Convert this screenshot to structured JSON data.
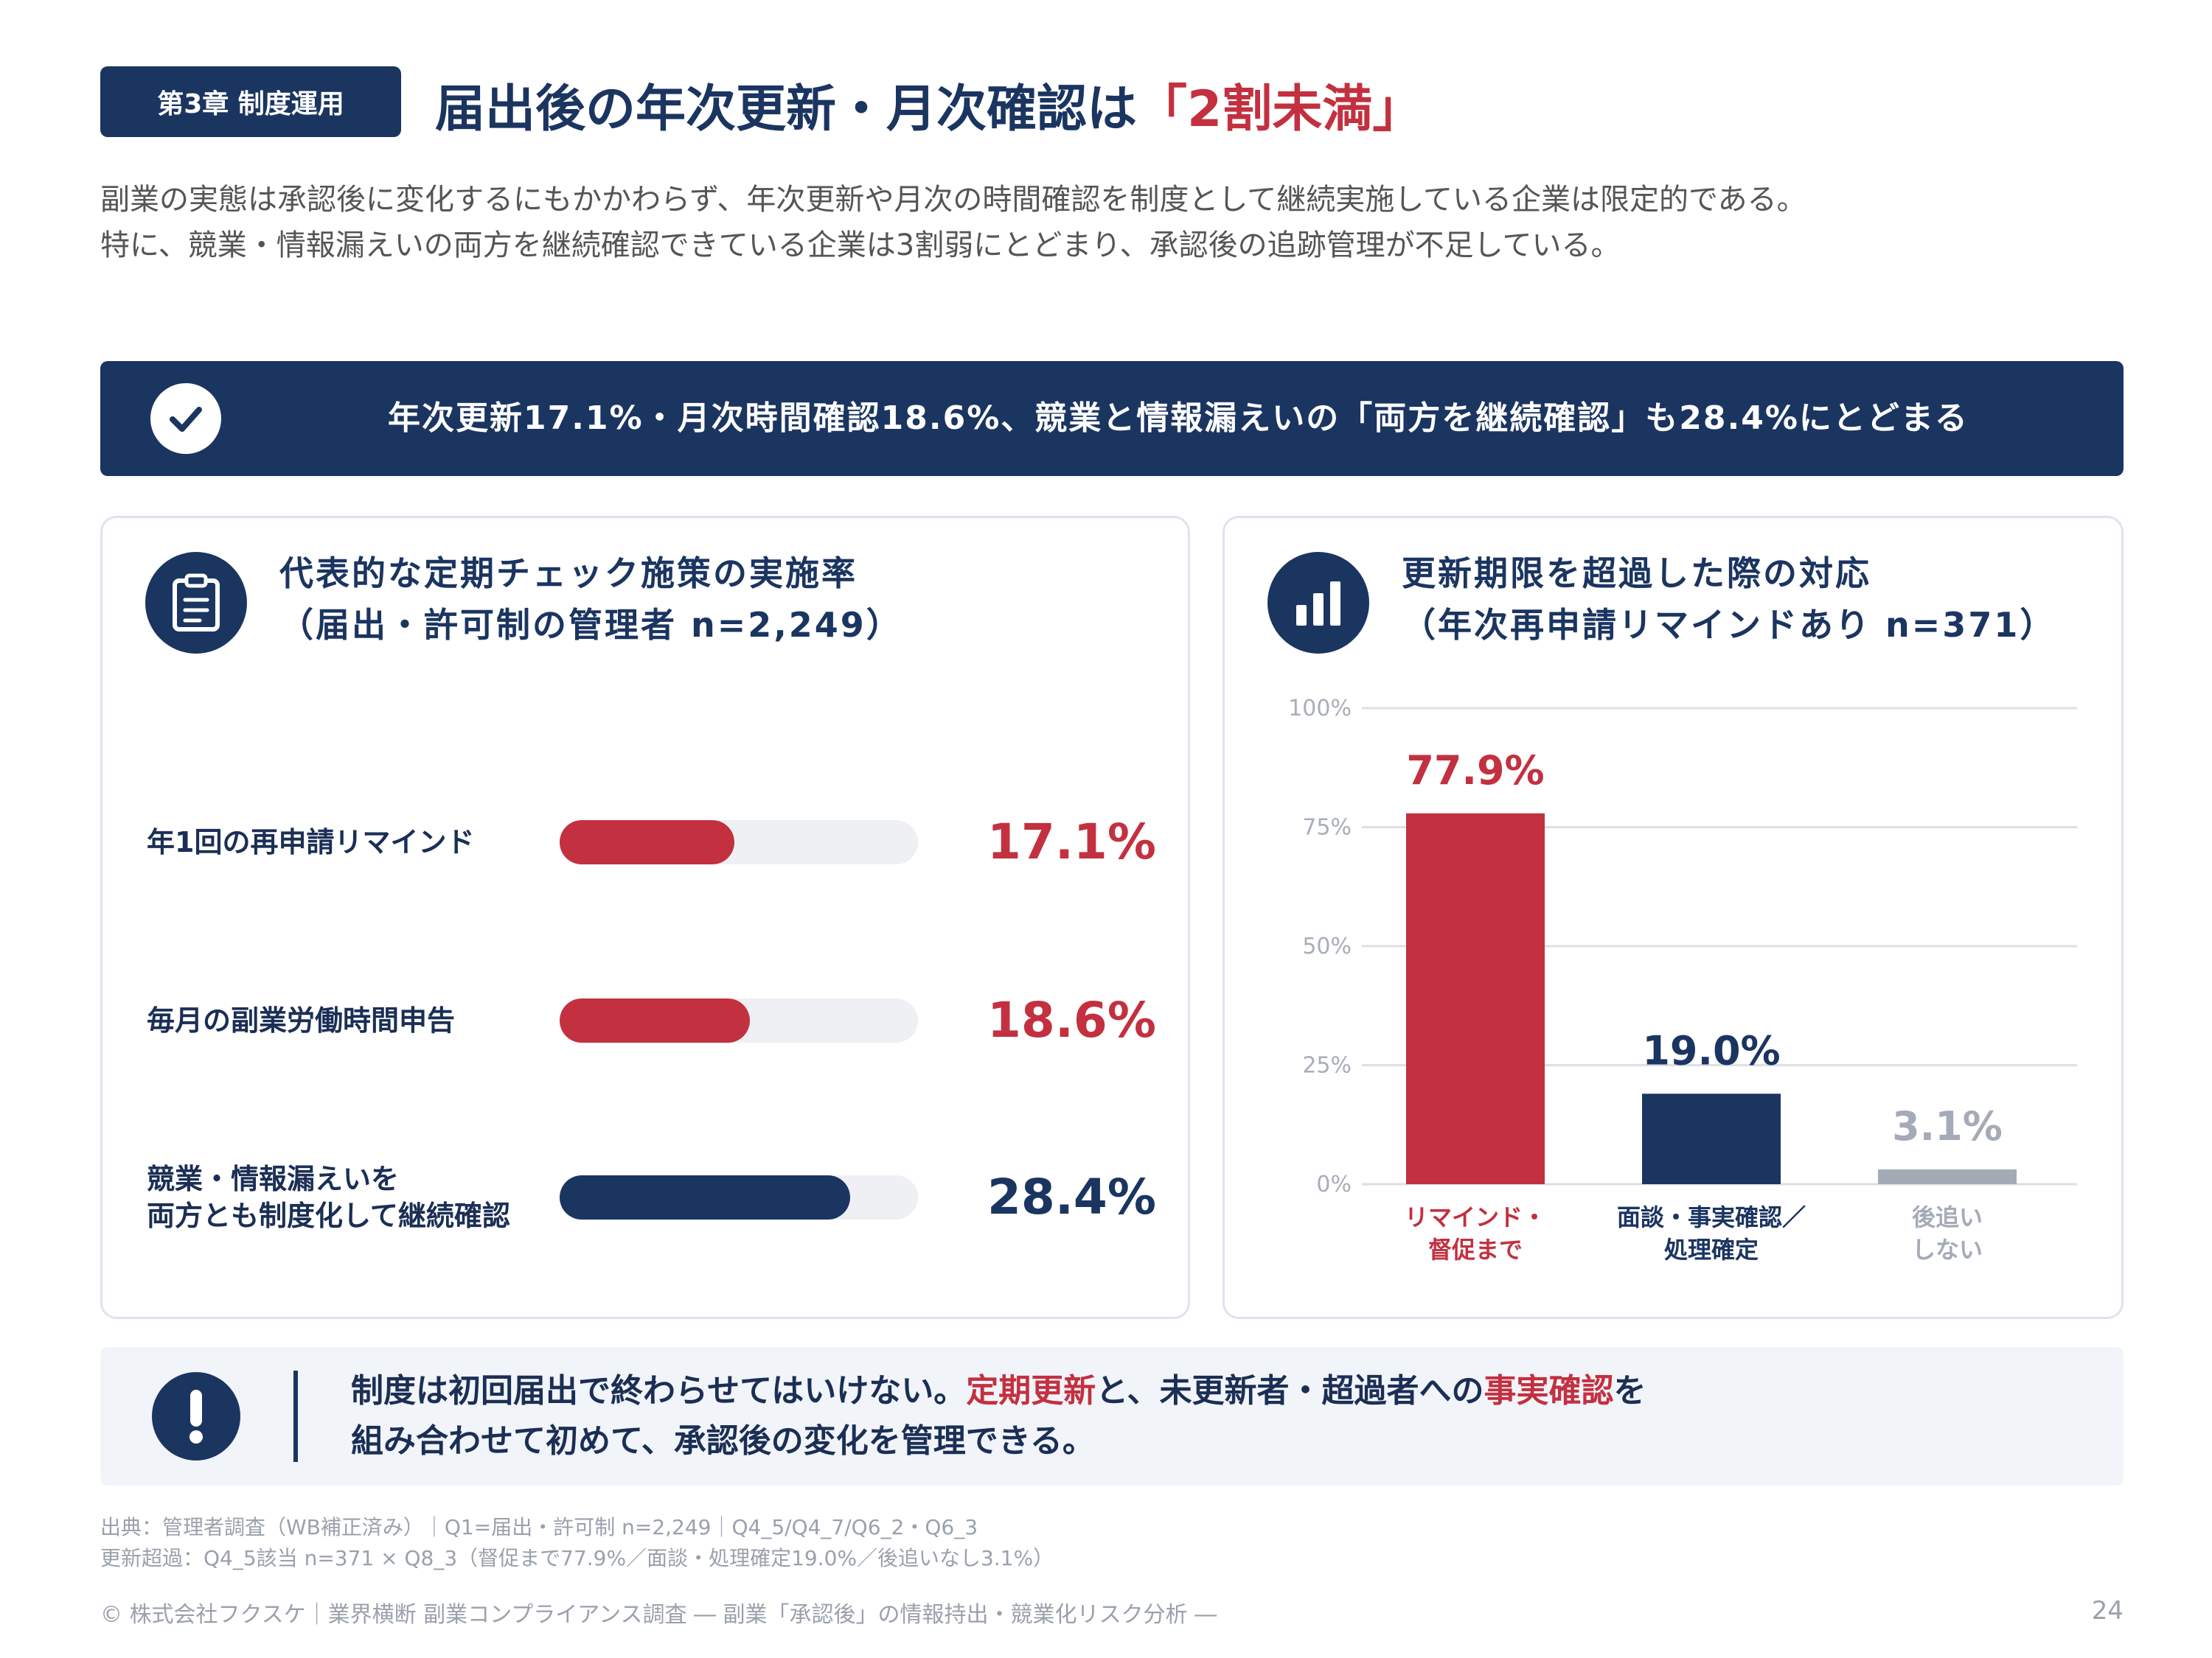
{
  "header": {
    "chapter": "第3章 制度運用",
    "title_main": "届出後の年次更新・月次確認は",
    "title_accent": "「2割未満」"
  },
  "intro": {
    "line1": "副業の実態は承認後に変化するにもかかわらず、年次更新や月次の時間確認を制度として継続実施している企業は限定的である。",
    "line2": "特に、競業・情報漏えいの両方を継続確認できている企業は3割弱にとどまり、承認後の追跡管理が不足している。"
  },
  "banner": {
    "icon": "check-icon",
    "text": "年次更新17.1%・月次時間確認18.6%、競業と情報漏えいの「両方を継続確認」も28.4%にとどまる"
  },
  "left_card": {
    "icon": "clipboard-icon",
    "title_line1": "代表的な定期チェック施策の実施率",
    "title_line2": "（届出・許可制の管理者 n=2,249）",
    "rows": [
      {
        "label_lines": [
          "年1回の再申請リマインド"
        ],
        "value": 17.1,
        "value_label": "17.1%",
        "color": "#c3303f"
      },
      {
        "label_lines": [
          "毎月の副業労働時間申告"
        ],
        "value": 18.6,
        "value_label": "18.6%",
        "color": "#c3303f"
      },
      {
        "label_lines": [
          "競業・情報漏えいを",
          "両方とも制度化して継続確認"
        ],
        "value": 28.4,
        "value_label": "28.4%",
        "color": "#1b3561"
      }
    ]
  },
  "right_card": {
    "icon": "bar-chart-icon",
    "title_line1": "更新期限を超過した際の対応",
    "title_line2": "（年次再申請リマインドあり n=371）"
  },
  "chart_data": {
    "type": "bar",
    "categories": [
      "リマインド・督促まで",
      "面談・事実確認／処理確定",
      "後追いしない"
    ],
    "category_lines": [
      [
        "リマインド・",
        "督促まで"
      ],
      [
        "面談・事実確認／",
        "処理確定"
      ],
      [
        "後追い",
        "しない"
      ]
    ],
    "values": [
      77.9,
      19.0,
      3.1
    ],
    "value_labels": [
      "77.9%",
      "19.0%",
      "3.1%"
    ],
    "colors": [
      "#c3303f",
      "#1b3561",
      "#a4abb7"
    ],
    "ylim": [
      0,
      100
    ],
    "yticks": [
      0,
      25,
      50,
      75,
      100
    ],
    "ytick_labels": [
      "0%",
      "25%",
      "50%",
      "75%",
      "100%"
    ],
    "grid": true
  },
  "note": {
    "icon": "exclamation-icon",
    "line1_a": "制度は初回届出で終わらせてはいけない。",
    "line1_hl1": "定期更新",
    "line1_b": "と、未更新者・超過者への",
    "line1_hl2": "事実確認",
    "line1_c": "を",
    "line2": "組み合わせて初めて、承認後の変化を管理できる。"
  },
  "source": {
    "line1": "出典：管理者調査（WB補正済み）｜Q1=届出・許可制 n=2,249｜Q4_5/Q4_7/Q6_2・Q6_3",
    "line2": "更新超過：Q4_5該当 n=371 × Q8_3（督促まで77.9%／面談・処理確定19.0%／後追いなし3.1%）"
  },
  "footer": {
    "text": "© 株式会社フクスケ｜業界横断 副業コンプライアンス調査 ― 副業「承認後」の情報持出・競業化リスク分析 ―",
    "page": "24"
  }
}
